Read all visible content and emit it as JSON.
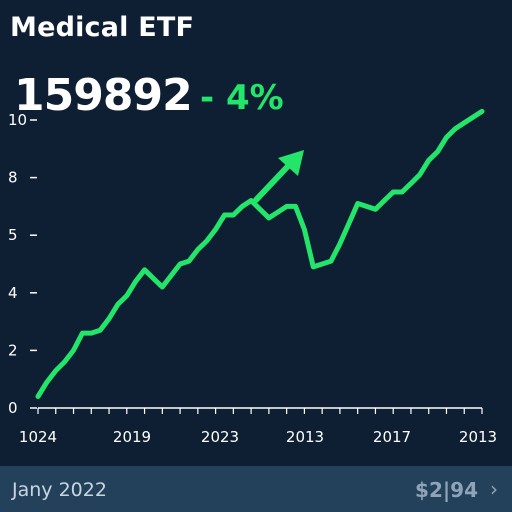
{
  "header": {
    "title": "Medical ETF",
    "value": "159892",
    "change": "- 4%"
  },
  "footer": {
    "date": "Jany 2022",
    "price": "$2|94",
    "chevron_icon": "chevron-right-icon"
  },
  "colors": {
    "background": "#0f1f33",
    "accent": "#22e56a",
    "footer": "#24415c"
  },
  "chart_data": {
    "type": "line",
    "title": "Medical ETF",
    "y_ticks": [
      "10",
      "8",
      "5",
      "4",
      "2",
      "0"
    ],
    "x_ticks": [
      "1024",
      "2019",
      "2023",
      "2013",
      "2017",
      "2013"
    ],
    "ylim": [
      0,
      10
    ],
    "grid": false,
    "series": [
      {
        "values": [
          0.4,
          0.9,
          1.3,
          1.6,
          2.0,
          2.6,
          2.6,
          2.7,
          3.1,
          3.6,
          3.9,
          4.4,
          4.8,
          4.5,
          4.2,
          4.6,
          5.0,
          5.1,
          5.5,
          5.8,
          6.2,
          6.7,
          6.7,
          7.0,
          7.2,
          6.9,
          6.6,
          6.8,
          7.0,
          7.0,
          6.2,
          4.9,
          5.0,
          5.1,
          5.7,
          6.4,
          7.1,
          7.0,
          6.9,
          7.2,
          7.5,
          7.5,
          7.8,
          8.1,
          8.6,
          8.9,
          9.4,
          9.7,
          9.9,
          10.1,
          10.3
        ]
      }
    ],
    "annotation": "arrow-up-right-icon"
  }
}
